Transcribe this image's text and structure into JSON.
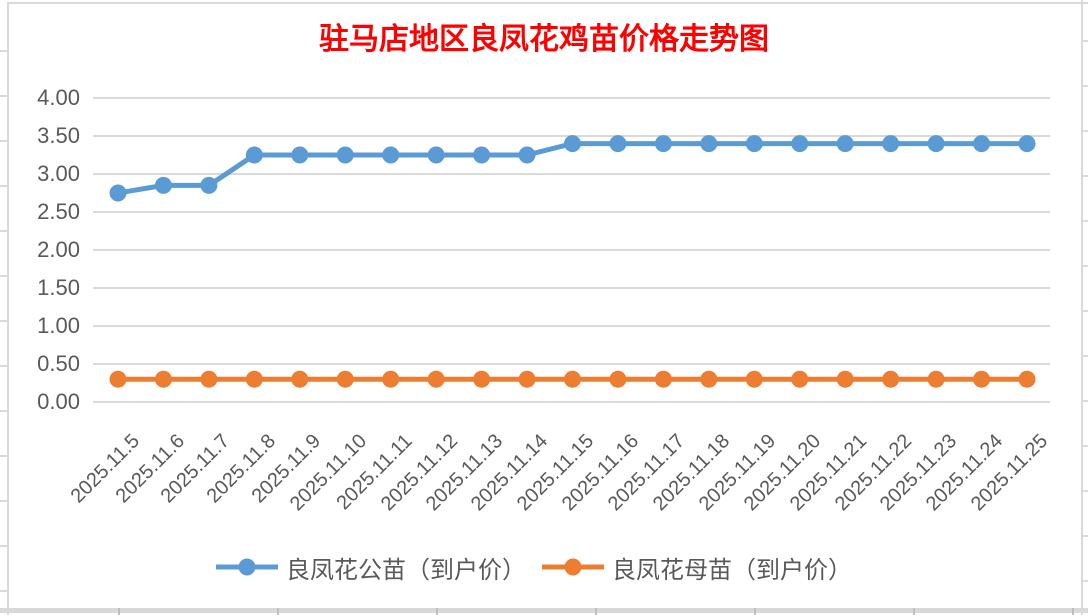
{
  "title": {
    "text": "驻马店地区良凤花鸡苗价格走势图",
    "color": "#FF0000"
  },
  "chart_data": {
    "type": "line",
    "title": "驻马店地区良凤花鸡苗价格走势图",
    "categories": [
      "2025.11.5",
      "2025.11.6",
      "2025.11.7",
      "2025.11.8",
      "2025.11.9",
      "2025.11.10",
      "2025.11.11",
      "2025.11.12",
      "2025.11.13",
      "2025.11.14",
      "2025.11.15",
      "2025.11.16",
      "2025.11.17",
      "2025.11.18",
      "2025.11.19",
      "2025.11.20",
      "2025.11.21",
      "2025.11.22",
      "2025.11.23",
      "2025.11.24",
      "2025.11.25"
    ],
    "series": [
      {
        "name": "良凤花公苗（到户价）",
        "color": "#5B9BD5",
        "values": [
          2.75,
          2.85,
          2.85,
          3.25,
          3.25,
          3.25,
          3.25,
          3.25,
          3.25,
          3.25,
          3.4,
          3.4,
          3.4,
          3.4,
          3.4,
          3.4,
          3.4,
          3.4,
          3.4,
          3.4,
          3.4
        ]
      },
      {
        "name": "良凤花母苗（到户价）",
        "color": "#ED7D31",
        "values": [
          0.3,
          0.3,
          0.3,
          0.3,
          0.3,
          0.3,
          0.3,
          0.3,
          0.3,
          0.3,
          0.3,
          0.3,
          0.3,
          0.3,
          0.3,
          0.3,
          0.3,
          0.3,
          0.3,
          0.3,
          0.3
        ]
      }
    ],
    "ylim": [
      0,
      4
    ],
    "ytick_step": 0.5,
    "ytick_labels": [
      "0.00",
      "0.50",
      "1.00",
      "1.50",
      "2.00",
      "2.50",
      "3.00",
      "3.50",
      "4.00"
    ],
    "xlabel": "",
    "ylabel": "",
    "grid": true,
    "legend_position": "bottom",
    "marker": "circle",
    "gridline_color": "#D9D9D9",
    "label_color": "#595959"
  }
}
